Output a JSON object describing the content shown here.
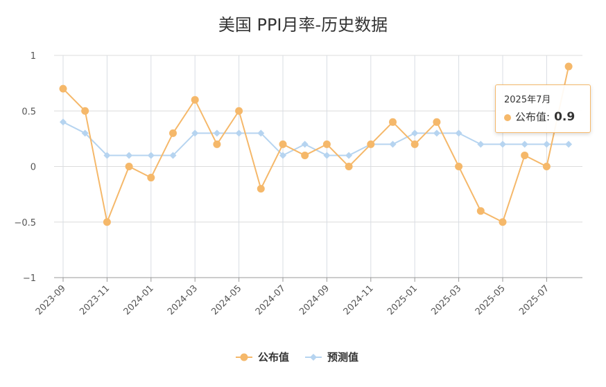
{
  "chart_data": {
    "type": "line",
    "title": "美国 PPI月率-历史数据",
    "x": [
      "2023-09",
      "2023-10",
      "2023-11",
      "2023-12",
      "2024-01",
      "2024-02",
      "2024-03",
      "2024-04",
      "2024-05",
      "2024-06",
      "2024-07",
      "2024-08",
      "2024-09",
      "2024-10",
      "2024-11",
      "2024-12",
      "2025-01",
      "2025-02",
      "2025-03",
      "2025-04",
      "2025-05",
      "2025-06",
      "2025-07",
      "2025-08"
    ],
    "x_tick_labels": [
      "2023-09",
      "2023-11",
      "2024-01",
      "2024-03",
      "2024-05",
      "2024-07",
      "2024-09",
      "2024-11",
      "2025-01",
      "2025-03",
      "2025-05",
      "2025-07"
    ],
    "y_tick_labels": [
      "1",
      "0.5",
      "0",
      "-0.5",
      "-1"
    ],
    "ylim": [
      -1,
      1
    ],
    "grid": true,
    "legend_position": "bottom-center",
    "series": [
      {
        "name": "公布值",
        "color": "#f5b86a",
        "marker": "circle",
        "values": [
          0.7,
          0.5,
          -0.5,
          0.0,
          -0.1,
          0.3,
          0.6,
          0.2,
          0.5,
          -0.2,
          0.2,
          0.1,
          0.2,
          0.0,
          0.2,
          0.4,
          0.2,
          0.4,
          0.0,
          -0.4,
          -0.5,
          0.1,
          0.0,
          0.9
        ]
      },
      {
        "name": "预测值",
        "color": "#b6d4f0",
        "marker": "diamond",
        "values": [
          0.4,
          0.3,
          0.1,
          0.1,
          0.1,
          0.1,
          0.3,
          0.3,
          0.3,
          0.3,
          0.1,
          0.2,
          0.1,
          0.1,
          0.2,
          0.2,
          0.3,
          0.3,
          0.3,
          0.2,
          0.2,
          0.2,
          0.2,
          0.2
        ]
      }
    ]
  },
  "tooltip": {
    "date": "2025年7月",
    "label": "公布值:",
    "value": "0.9"
  }
}
